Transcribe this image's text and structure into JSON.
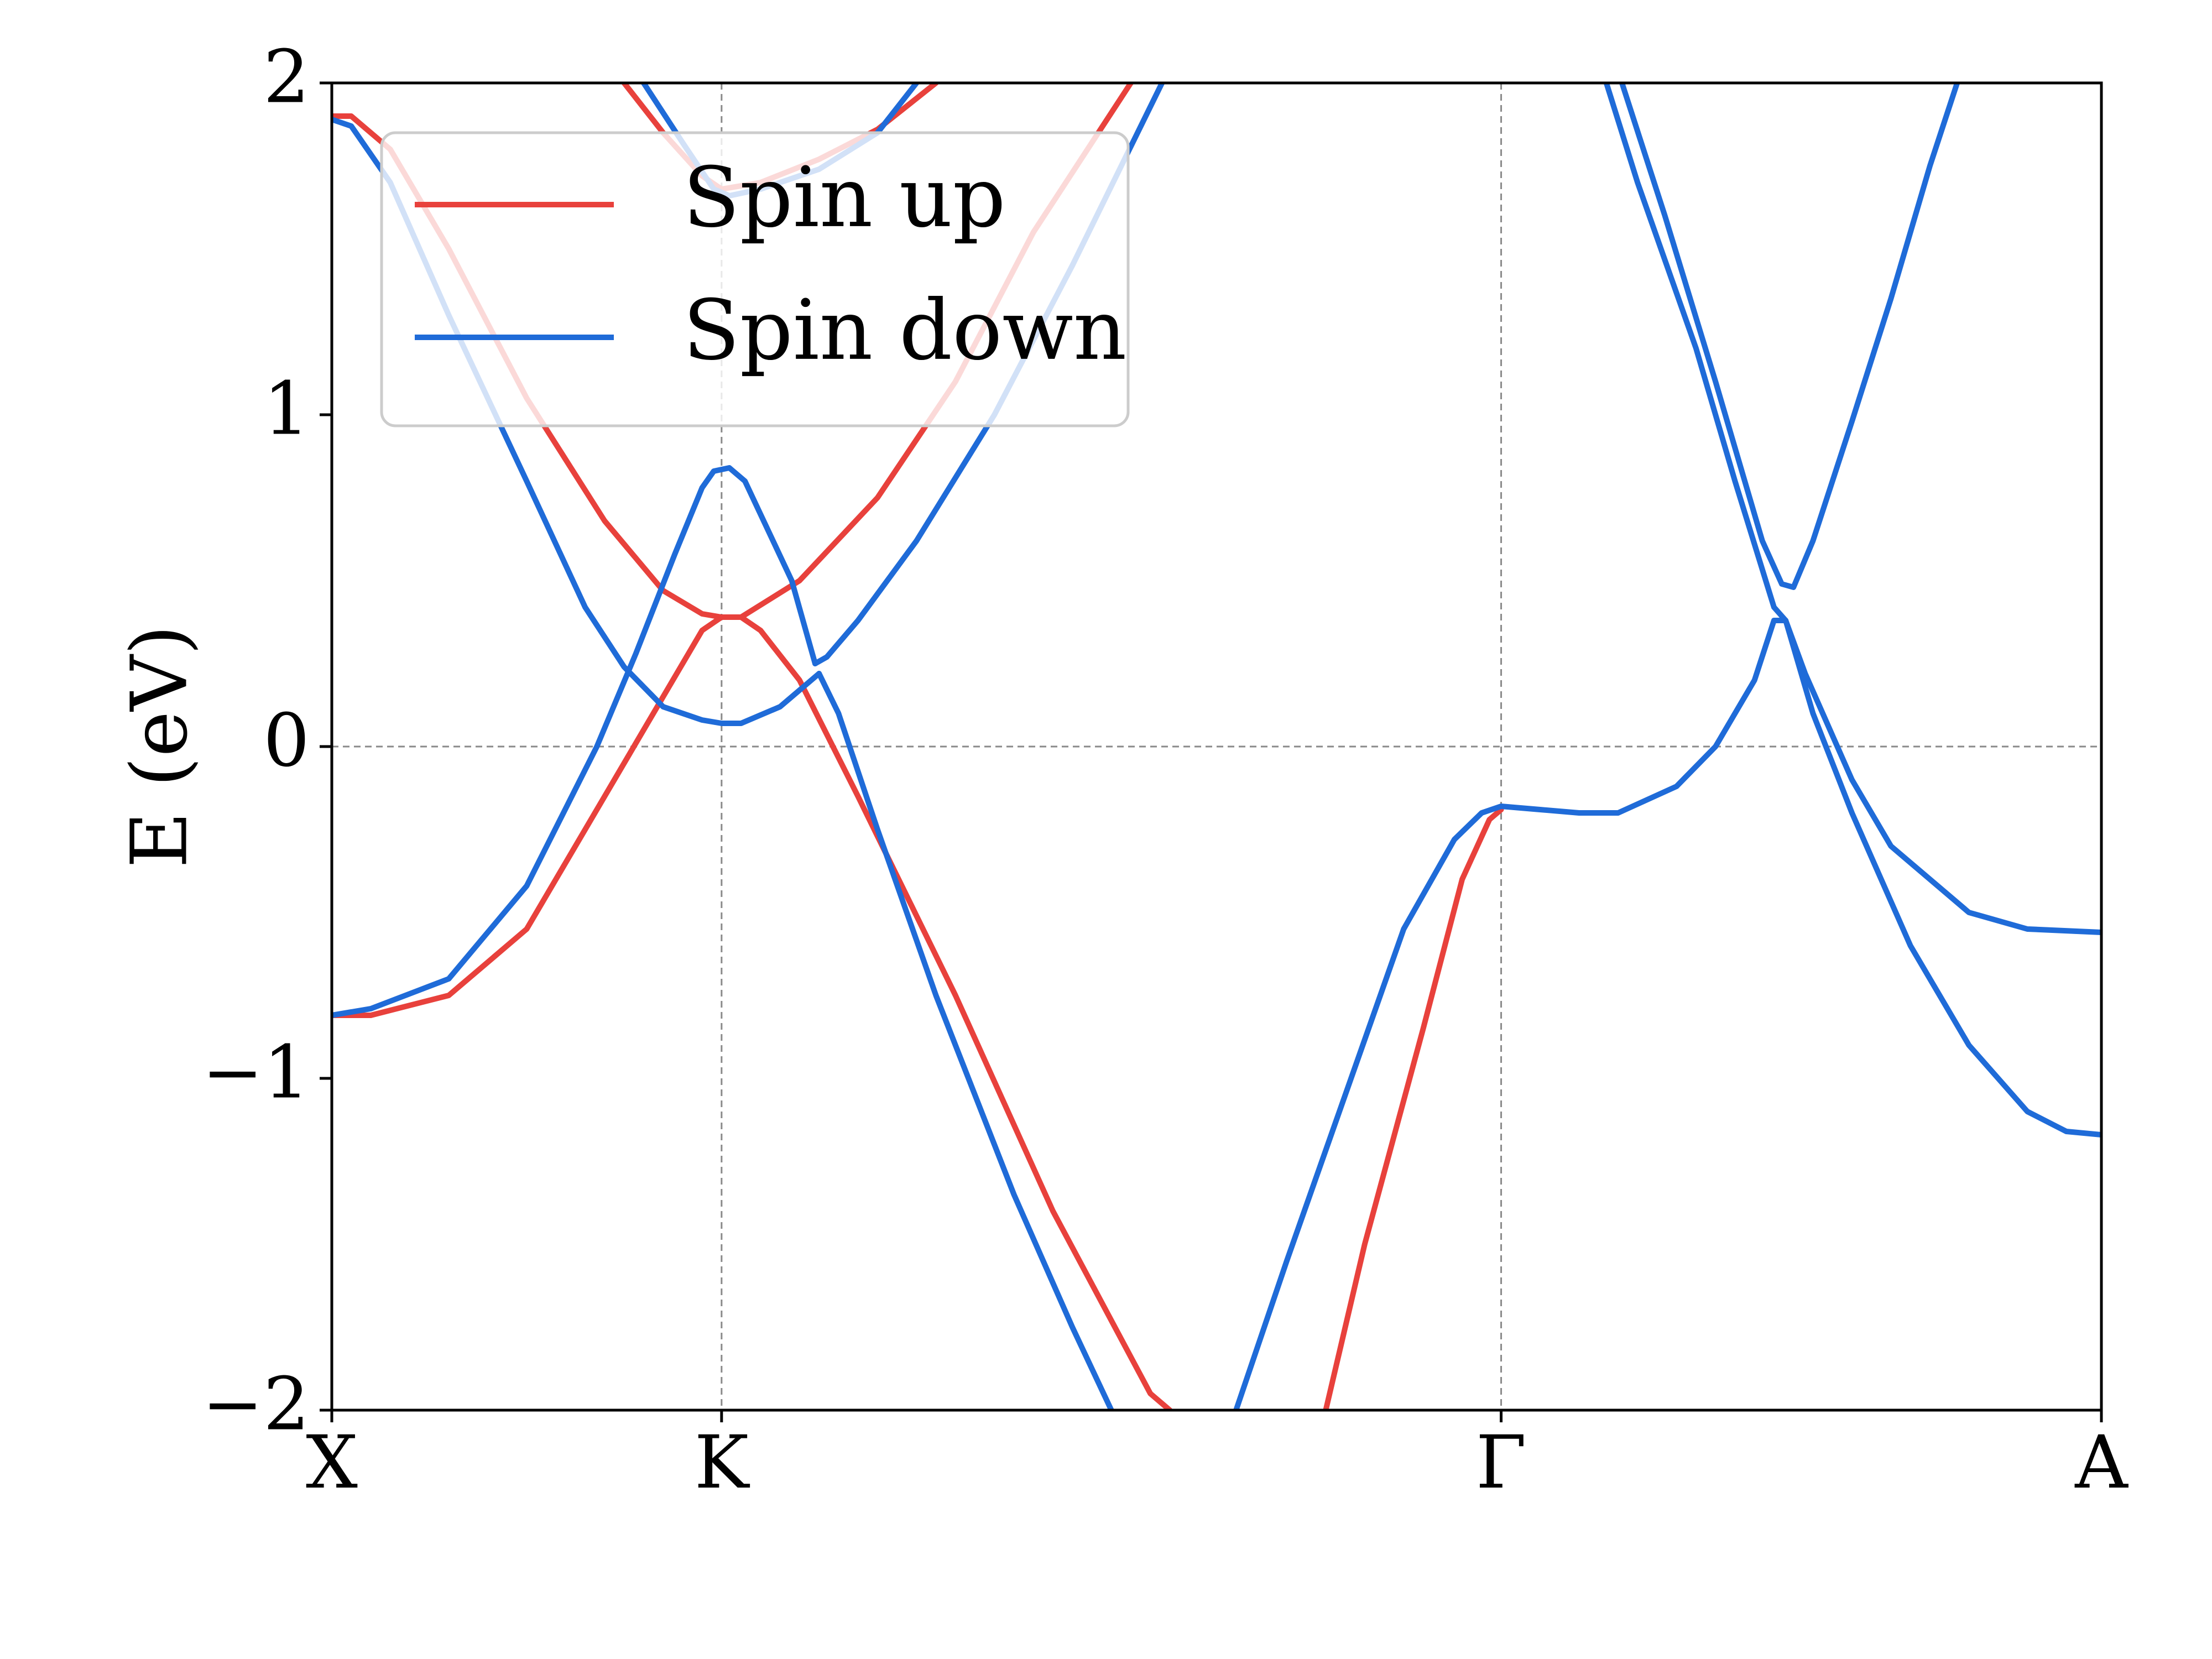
{
  "chart_data": {
    "type": "line",
    "title": "",
    "ylabel": "E (eV)",
    "xlabel": "",
    "ylim": [
      -2,
      2
    ],
    "yticks": [
      {
        "value": -2,
        "label": "−2"
      },
      {
        "value": -1,
        "label": "−1"
      },
      {
        "value": 0,
        "label": "0"
      },
      {
        "value": 1,
        "label": "1"
      },
      {
        "value": 2,
        "label": "2"
      }
    ],
    "xlim": [
      0,
      4.54
    ],
    "xticks": [
      {
        "value": 0,
        "label": "X"
      },
      {
        "value": 1,
        "label": "K"
      },
      {
        "value": 3,
        "label": "Γ"
      },
      {
        "value": 4.54,
        "label": "A"
      }
    ],
    "grid": "dashed lines at high-symmetry points and E = 0",
    "legend": {
      "position": "top-left",
      "entries": [
        "Spin up",
        "Spin down"
      ]
    },
    "colors": {
      "spin_up": "#e8413c",
      "spin_down": "#1f6bd8"
    },
    "series": [
      {
        "name": "Spin up",
        "color": "#e8413c",
        "points": [
          [
            0,
            1.9
          ],
          [
            0.05,
            1.9
          ],
          [
            0.15,
            1.8
          ],
          [
            0.3,
            1.5
          ],
          [
            0.5,
            1.05
          ],
          [
            0.7,
            0.68
          ],
          [
            0.85,
            0.47
          ],
          [
            0.95,
            0.4
          ],
          [
            1.0,
            0.39
          ],
          [
            1.05,
            0.39
          ],
          [
            1.2,
            0.5
          ],
          [
            1.4,
            0.75
          ],
          [
            1.6,
            1.1
          ],
          [
            1.8,
            1.55
          ],
          [
            2.05,
            2.0
          ]
        ]
      },
      {
        "name": "Spin up",
        "color": "#e8413c",
        "points": [
          [
            0,
            -0.81
          ],
          [
            0.1,
            -0.81
          ],
          [
            0.3,
            -0.75
          ],
          [
            0.5,
            -0.55
          ],
          [
            0.7,
            -0.15
          ],
          [
            0.85,
            0.15
          ],
          [
            0.95,
            0.35
          ],
          [
            1.0,
            0.39
          ],
          [
            1.05,
            0.39
          ],
          [
            1.1,
            0.35
          ],
          [
            1.2,
            0.2
          ],
          [
            1.35,
            -0.15
          ],
          [
            1.6,
            -0.75
          ],
          [
            1.85,
            -1.4
          ],
          [
            2.1,
            -1.95
          ],
          [
            2.15,
            -2.0
          ]
        ]
      },
      {
        "name": "Spin up",
        "color": "#e8413c",
        "points": [
          [
            0.75,
            2.0
          ],
          [
            0.85,
            1.85
          ],
          [
            0.95,
            1.72
          ],
          [
            1.0,
            1.68
          ],
          [
            1.1,
            1.7
          ],
          [
            1.25,
            1.77
          ],
          [
            1.4,
            1.86
          ],
          [
            1.55,
            2.0
          ]
        ]
      },
      {
        "name": "Spin up",
        "color": "#e8413c",
        "points": [
          [
            2.55,
            -2.0
          ],
          [
            2.65,
            -1.5
          ],
          [
            2.8,
            -0.85
          ],
          [
            2.9,
            -0.4
          ],
          [
            2.97,
            -0.22
          ],
          [
            3.0,
            -0.19
          ]
        ]
      },
      {
        "name": "Spin down",
        "color": "#1f6bd8",
        "points": [
          [
            0,
            1.89
          ],
          [
            0.05,
            1.87
          ],
          [
            0.15,
            1.7
          ],
          [
            0.3,
            1.3
          ],
          [
            0.5,
            0.8
          ],
          [
            0.65,
            0.42
          ],
          [
            0.75,
            0.24
          ],
          [
            0.85,
            0.12
          ],
          [
            0.95,
            0.08
          ],
          [
            1.0,
            0.07
          ],
          [
            1.05,
            0.07
          ],
          [
            1.15,
            0.12
          ],
          [
            1.25,
            0.22
          ]
        ]
      },
      {
        "name": "Spin down",
        "color": "#1f6bd8",
        "points": [
          [
            1.25,
            0.22
          ],
          [
            1.3,
            0.1
          ],
          [
            1.4,
            -0.25
          ],
          [
            1.55,
            -0.75
          ],
          [
            1.75,
            -1.35
          ],
          [
            1.9,
            -1.75
          ],
          [
            2.0,
            -2.0
          ]
        ]
      },
      {
        "name": "Spin down",
        "color": "#1f6bd8",
        "points": [
          [
            0,
            -0.81
          ],
          [
            0.1,
            -0.79
          ],
          [
            0.3,
            -0.7
          ],
          [
            0.5,
            -0.42
          ],
          [
            0.68,
            0.0
          ],
          [
            0.78,
            0.28
          ],
          [
            0.88,
            0.58
          ],
          [
            0.95,
            0.78
          ],
          [
            0.98,
            0.83
          ],
          [
            1.02,
            0.84
          ],
          [
            1.06,
            0.8
          ],
          [
            1.1,
            0.7
          ],
          [
            1.18,
            0.5
          ],
          [
            1.24,
            0.25
          ]
        ]
      },
      {
        "name": "Spin down",
        "color": "#1f6bd8",
        "points": [
          [
            1.24,
            0.25
          ],
          [
            1.27,
            0.27
          ],
          [
            1.35,
            0.38
          ],
          [
            1.5,
            0.62
          ],
          [
            1.7,
            1.0
          ],
          [
            1.9,
            1.45
          ],
          [
            2.13,
            2.0
          ]
        ]
      },
      {
        "name": "Spin down",
        "color": "#1f6bd8",
        "points": [
          [
            0.8,
            2.0
          ],
          [
            0.9,
            1.82
          ],
          [
            0.98,
            1.68
          ],
          [
            1.02,
            1.66
          ],
          [
            1.1,
            1.68
          ],
          [
            1.25,
            1.74
          ],
          [
            1.4,
            1.85
          ],
          [
            1.5,
            2.0
          ]
        ]
      },
      {
        "name": "Spin down",
        "color": "#1f6bd8",
        "points": [
          [
            2.32,
            -2.0
          ],
          [
            2.45,
            -1.55
          ],
          [
            2.6,
            -1.05
          ],
          [
            2.75,
            -0.55
          ],
          [
            2.88,
            -0.28
          ],
          [
            2.95,
            -0.2
          ],
          [
            3.0,
            -0.18
          ],
          [
            3.1,
            -0.19
          ],
          [
            3.2,
            -0.2
          ],
          [
            3.3,
            -0.2
          ],
          [
            3.45,
            -0.12
          ],
          [
            3.55,
            0.0
          ],
          [
            3.65,
            0.2
          ],
          [
            3.7,
            0.38
          ],
          [
            3.73,
            0.38
          ],
          [
            3.78,
            0.22
          ],
          [
            3.9,
            -0.1
          ],
          [
            4.0,
            -0.3
          ],
          [
            4.2,
            -0.5
          ],
          [
            4.35,
            -0.55
          ],
          [
            4.54,
            -0.56
          ]
        ]
      },
      {
        "name": "Spin down",
        "color": "#1f6bd8",
        "points": [
          [
            3.27,
            2.0
          ],
          [
            3.35,
            1.7
          ],
          [
            3.5,
            1.2
          ],
          [
            3.6,
            0.8
          ],
          [
            3.7,
            0.42
          ],
          [
            3.73,
            0.38
          ],
          [
            3.8,
            0.1
          ],
          [
            3.9,
            -0.2
          ],
          [
            4.05,
            -0.6
          ],
          [
            4.2,
            -0.9
          ],
          [
            4.35,
            -1.1
          ],
          [
            4.45,
            -1.16
          ],
          [
            4.54,
            -1.17
          ]
        ]
      },
      {
        "name": "Spin down",
        "color": "#1f6bd8",
        "points": [
          [
            3.31,
            2.0
          ],
          [
            3.42,
            1.6
          ],
          [
            3.55,
            1.1
          ],
          [
            3.67,
            0.62
          ],
          [
            3.72,
            0.49
          ],
          [
            3.75,
            0.48
          ],
          [
            3.8,
            0.62
          ],
          [
            3.9,
            0.98
          ],
          [
            4.0,
            1.35
          ],
          [
            4.1,
            1.75
          ],
          [
            4.17,
            2.0
          ]
        ]
      }
    ]
  }
}
